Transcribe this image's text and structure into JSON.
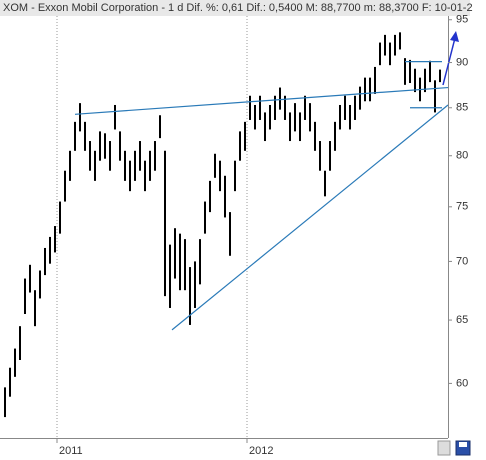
{
  "chart_data": {
    "type": "ohlc",
    "title": "XOM - Exxon Mobil Corporation - 1 d  Dif. %: 0,61  Dif.: 0,5400  M: 88,7700  m: 88,3700  F: 10-01-2",
    "high": [
      59.7,
      61.2,
      62.7,
      64.5,
      68.5,
      69.7,
      67.5,
      69.2,
      71.2,
      72.2,
      73.2,
      75.5,
      78.5,
      80.5,
      83.5,
      85.5,
      83.5,
      81.5,
      80.5,
      82.5,
      82.3,
      81.5,
      85.3,
      82.5,
      80.5,
      79.5,
      80.5,
      81.5,
      79.5,
      80.5,
      81.5,
      84.2,
      80.5,
      71.5,
      73,
      72.5,
      72,
      69.5,
      70,
      72,
      75.5,
      77.5,
      80.2,
      79.5,
      78,
      74.5,
      79.5,
      82.5,
      83.5,
      86.3,
      85.3,
      86.3,
      84.5,
      85.3,
      86.3,
      87.2,
      86.3,
      84.5,
      85.5,
      84.5,
      86.3,
      85.5,
      83.5,
      81.5,
      78.5,
      81.5,
      83.5,
      85.3,
      86.3,
      85.3,
      86.3,
      87.3,
      88.3,
      88.3,
      89.5,
      92.3,
      93.2,
      92.3,
      93.2,
      93.5,
      90.5,
      90.3,
      89.3,
      88.3,
      89.3,
      90.2,
      88,
      89.2
    ],
    "low": [
      57.5,
      59,
      60.5,
      61.8,
      65.5,
      67.3,
      64.5,
      66.8,
      68.8,
      69.8,
      70.8,
      72.5,
      75.5,
      77.5,
      80.5,
      82.5,
      80.5,
      78.5,
      77.5,
      79.5,
      79.7,
      78.5,
      82.7,
      79.5,
      77.5,
      76.5,
      77.5,
      78.5,
      76.5,
      77.5,
      78.5,
      81.8,
      67,
      66,
      68.5,
      67.5,
      67.5,
      64.6,
      66,
      68,
      72.5,
      74.5,
      77.8,
      76.5,
      74,
      70.5,
      76.5,
      79.5,
      80.5,
      83.7,
      82.7,
      83.7,
      81.5,
      82.7,
      83.7,
      84.8,
      83.7,
      81.5,
      82.5,
      81.5,
      83.7,
      82.5,
      80.5,
      78.5,
      76,
      78.5,
      80.5,
      82.7,
      83.7,
      82.7,
      83.7,
      84.8,
      85.7,
      85.7,
      86.5,
      89.7,
      90.8,
      89.7,
      90.8,
      91.5,
      87.5,
      87.7,
      86.7,
      85.7,
      86.7,
      87.8,
      84.5,
      87.8
    ],
    "color": "#000000",
    "xlim": [
      -1,
      88.6
    ],
    "xticks": [
      {
        "value": 10.4,
        "label": "2011"
      },
      {
        "value": 48.4,
        "label": "2012"
      }
    ],
    "ylim": [
      56,
      97.4
    ],
    "yticks": [
      60,
      65,
      70,
      75,
      80,
      85,
      90,
      95
    ],
    "log_y": true,
    "grid": "x",
    "trendlines": [
      {
        "x": [
          14,
          88.6
        ],
        "y": [
          84.3,
          87.2
        ],
        "color": "#2a7ab8"
      },
      {
        "x": [
          33.4,
          88.6
        ],
        "y": [
          64.2,
          85.3
        ],
        "color": "#2a7ab8"
      },
      {
        "x": [
          80,
          87.4
        ],
        "y": [
          90.1,
          90.1
        ],
        "color": "#2a7ab8"
      },
      {
        "x": [
          81,
          87.4
        ],
        "y": [
          85,
          85
        ],
        "color": "#2a7ab8"
      }
    ]
  }
}
